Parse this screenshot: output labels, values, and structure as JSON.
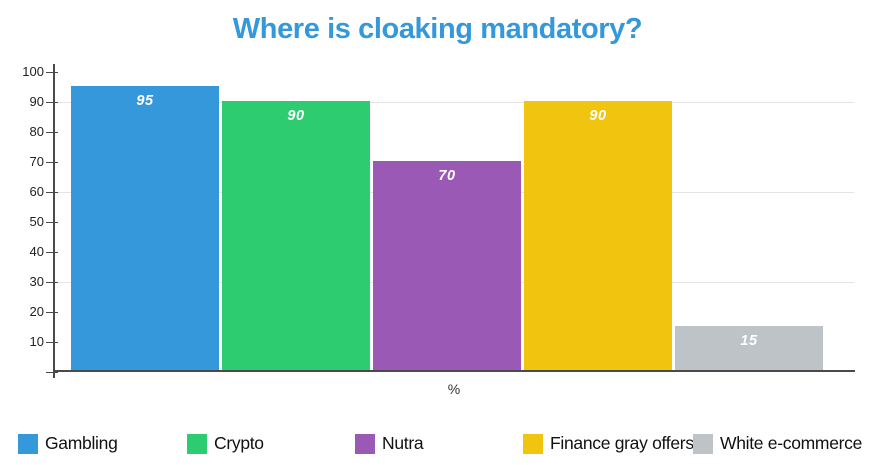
{
  "title": "Where is cloaking mandatory?",
  "chart_data": {
    "type": "bar",
    "title": "Where is cloaking mandatory?",
    "categories": [
      "Gambling",
      "Crypto",
      "Nutra",
      "Finance gray offers",
      "White e-commerce"
    ],
    "values": [
      95,
      90,
      70,
      90,
      15
    ],
    "bar_value_labels": [
      "95",
      "90",
      "70",
      "90",
      "15"
    ],
    "bar_colors": [
      "#3498db",
      "#2ecc71",
      "#9b59b6",
      "#f1c40f",
      "#bdc3c7"
    ],
    "xlabel": "%",
    "ylabel": "",
    "ylim": [
      0,
      100
    ],
    "ytick_labels": [
      "10",
      "20",
      "30",
      "40",
      "50",
      "60",
      "70",
      "80",
      "90",
      "100"
    ],
    "ytick_values": [
      10,
      20,
      30,
      40,
      50,
      60,
      70,
      80,
      90,
      100
    ],
    "gridline_values": [
      30,
      60,
      90
    ],
    "grid": "horizontal-partial",
    "legend_position": "bottom"
  },
  "colors": {
    "title": "#3498db",
    "axis": "#4a4a4a",
    "tick": "#4a4a4a",
    "gridline": "#e4e4e4",
    "tick_label": "#1f1f1f",
    "legend_label": "#111111",
    "xlabel_text": "#333333",
    "bar_value_text": "#ffffff",
    "background": "#ffffff"
  }
}
